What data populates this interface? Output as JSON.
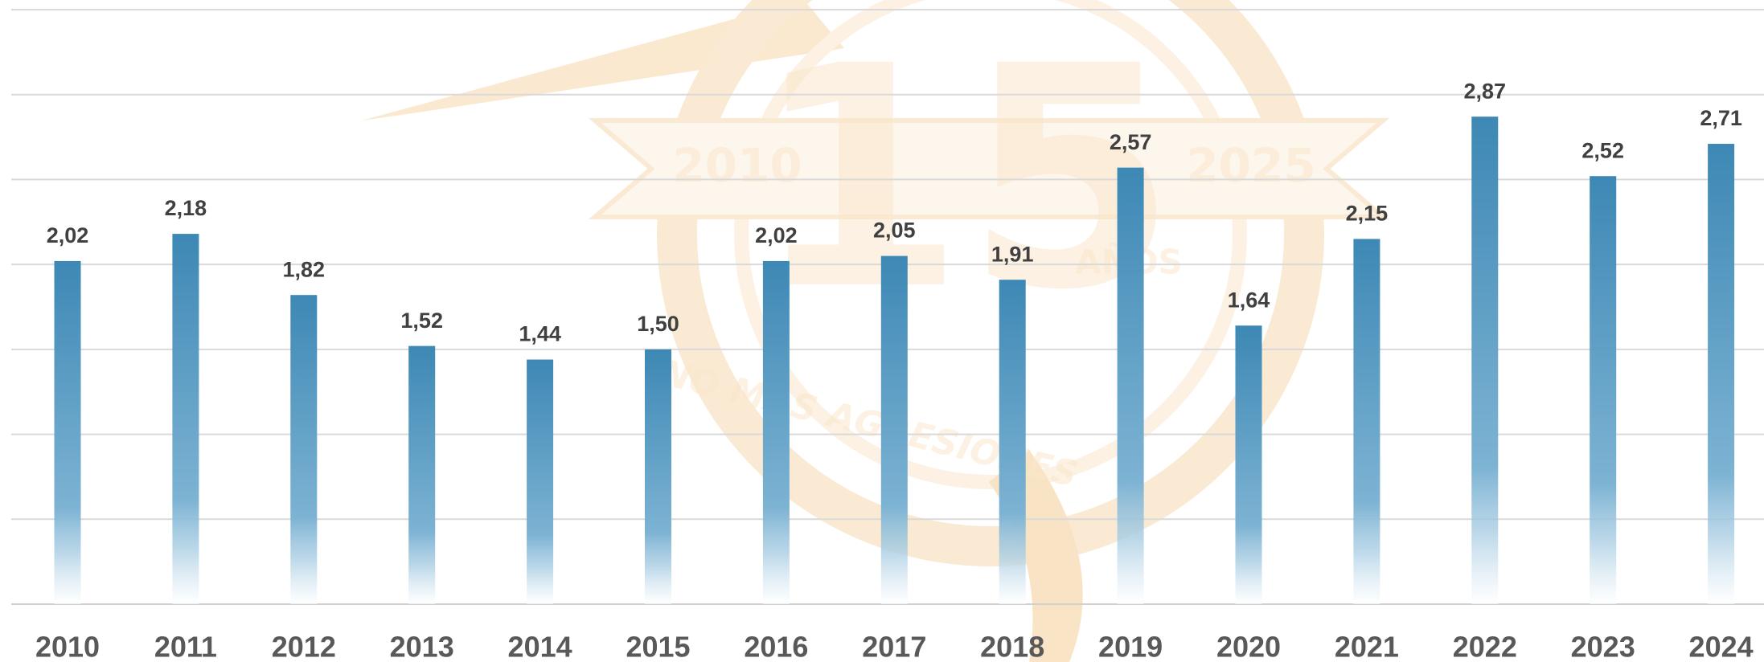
{
  "chart_data": {
    "type": "bar",
    "categories": [
      "2010",
      "2011",
      "2012",
      "2013",
      "2014",
      "2015",
      "2016",
      "2017",
      "2018",
      "2019",
      "2020",
      "2021",
      "2022",
      "2023",
      "2024"
    ],
    "values": [
      2.02,
      2.18,
      1.82,
      1.52,
      1.44,
      1.5,
      2.02,
      2.05,
      1.91,
      2.57,
      1.64,
      2.15,
      2.87,
      2.52,
      2.71
    ],
    "value_labels": [
      "2,02",
      "2,18",
      "1,82",
      "1,52",
      "1,44",
      "1,50",
      "2,02",
      "2,05",
      "1,91",
      "2,57",
      "1,64",
      "2,15",
      "2,87",
      "2,52",
      "2,71"
    ],
    "color": "#3d88b5",
    "ylim": [
      0,
      3.5
    ],
    "yticks": [
      0,
      0.5,
      1,
      1.5,
      2,
      2.5,
      3,
      3.5
    ],
    "grid": true,
    "watermark": {
      "number": "15",
      "start": "2010",
      "end": "2025",
      "years": "AÑOS",
      "motto": "NO MÁS AGRESIONES"
    }
  }
}
